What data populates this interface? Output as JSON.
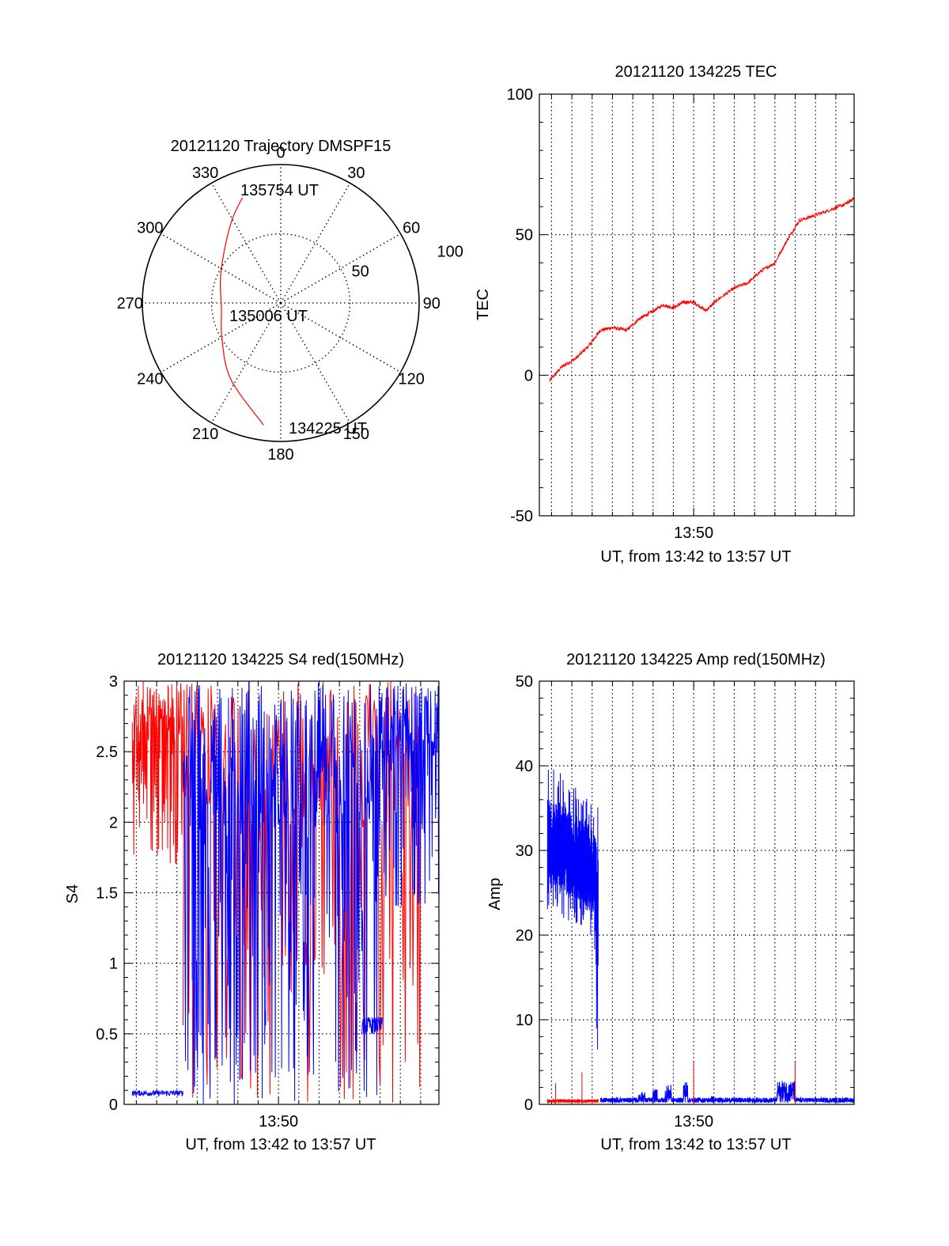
{
  "colors": {
    "red": "#ff0000",
    "blue": "#0000ff",
    "axis": "#000000",
    "grid": "#000000"
  },
  "chart_data": [
    {
      "id": "trajectory",
      "type": "polar",
      "title": "20121120 Trajectory DMSPF15",
      "angle_labels": [
        "0",
        "30",
        "60",
        "90",
        "120",
        "150",
        "180",
        "210",
        "240",
        "270",
        "300",
        "330"
      ],
      "angles_deg": [
        0,
        30,
        60,
        90,
        120,
        150,
        180,
        210,
        240,
        270,
        300,
        330
      ],
      "radial_range": [
        0,
        100
      ],
      "radial_rings": [
        50
      ],
      "radial_labels": [
        "50",
        "100"
      ],
      "track": {
        "color": "red",
        "points": [
          {
            "az": 340,
            "r": 81
          },
          {
            "az": 330,
            "r": 70
          },
          {
            "az": 315,
            "r": 57
          },
          {
            "az": 292,
            "r": 47
          },
          {
            "az": 265,
            "r": 43
          },
          {
            "az": 238,
            "r": 50
          },
          {
            "az": 213,
            "r": 66
          },
          {
            "az": 188,
            "r": 89
          }
        ]
      },
      "annotations": [
        "135754 UT",
        "135006 UT",
        "134225 UT"
      ]
    },
    {
      "id": "tec",
      "type": "line",
      "title": "20121120 134225 TEC",
      "xlabel": "UT, from 13:42 to 13:57 UT",
      "ylabel": "TEC",
      "x_tick_labels": [
        "13:50"
      ],
      "x_range_min": [
        42.4,
        57.9
      ],
      "y_range": [
        -50,
        100
      ],
      "y_ticks": [
        -50,
        0,
        50,
        100
      ],
      "series": [
        {
          "color": "red",
          "x_min": [
            42.9,
            43.5,
            44.2,
            44.9,
            45.4,
            46.0,
            46.7,
            47.3,
            47.8,
            48.5,
            49.0,
            49.5,
            50.0,
            50.6,
            51.2,
            52.0,
            52.7,
            53.3,
            54.0,
            54.6,
            55.2,
            56.0,
            56.8,
            57.5,
            57.9
          ],
          "values": [
            -2,
            3,
            6,
            11,
            16,
            17,
            16,
            20,
            22,
            25,
            24,
            26,
            26,
            23,
            27,
            31,
            33,
            37,
            40,
            48,
            55,
            57,
            59,
            61,
            63
          ]
        }
      ]
    },
    {
      "id": "s4",
      "type": "line",
      "title": "20121120 134225 S4 red(150MHz)",
      "xlabel": "UT, from 13:42 to 13:57 UT",
      "ylabel": "S4",
      "x_tick_labels": [
        "13:50"
      ],
      "x_range_min": [
        42.4,
        57.9
      ],
      "y_range": [
        0,
        3
      ],
      "y_ticks": [
        0,
        0.5,
        1,
        1.5,
        2,
        2.5,
        3
      ],
      "y_tick_labels": [
        "0",
        "0.5",
        "1",
        "1.5",
        "2",
        "2.5",
        "3"
      ],
      "series": [
        {
          "color": "red",
          "segments": [
            {
              "x0": 42.8,
              "x1": 45.3,
              "min": 1.7,
              "max": 3.0,
              "density": 0.9
            },
            {
              "x0": 45.3,
              "x1": 57.0,
              "min": 0.0,
              "max": 3.0,
              "density": 0.35
            }
          ]
        },
        {
          "color": "blue",
          "segments": [
            {
              "x0": 42.8,
              "x1": 45.3,
              "min": 0.06,
              "max": 0.1,
              "density": 1.0
            },
            {
              "x0": 45.3,
              "x1": 55.1,
              "min": 0.0,
              "max": 3.0,
              "density": 0.7
            },
            {
              "x0": 54.1,
              "x1": 55.1,
              "min": 0.5,
              "max": 0.62,
              "density": 1.0
            },
            {
              "x0": 55.1,
              "x1": 57.9,
              "min": 1.4,
              "max": 3.0,
              "density": 0.9
            }
          ]
        }
      ]
    },
    {
      "id": "amp",
      "type": "line",
      "title": "20121120 134225 Amp red(150MHz)",
      "xlabel": "UT, from 13:42 to 13:57 UT",
      "ylabel": "Amp",
      "x_tick_labels": [
        "13:50"
      ],
      "x_range_min": [
        42.4,
        57.9
      ],
      "y_range": [
        0,
        50
      ],
      "y_ticks": [
        0,
        10,
        20,
        30,
        40,
        50
      ],
      "series": [
        {
          "color": "red",
          "baseline": [
            0.2,
            0.6
          ],
          "x_range_min": [
            42.8,
            45.3
          ],
          "spikes": [
            {
              "x_min": 43.2,
              "value": 2.5
            },
            {
              "x_min": 44.5,
              "value": 3.8
            },
            {
              "x_min": 50.0,
              "value": 5.0
            },
            {
              "x_min": 55.0,
              "value": 5.0
            }
          ]
        },
        {
          "color": "blue",
          "envelope": [
            {
              "x_min": 42.8,
              "min": 22,
              "max": 40
            },
            {
              "x_min": 43.6,
              "min": 21,
              "max": 39
            },
            {
              "x_min": 44.4,
              "min": 21,
              "max": 37
            },
            {
              "x_min": 45.1,
              "min": 19,
              "max": 36
            },
            {
              "x_min": 45.3,
              "min": 0.5,
              "max": 37
            }
          ],
          "baseline": [
            0.2,
            0.8
          ],
          "x_range_min": [
            45.4,
            57.9
          ],
          "bursts": [
            {
              "x0": 47.3,
              "x1": 47.6,
              "max": 1.5
            },
            {
              "x0": 48.0,
              "x1": 48.2,
              "max": 1.8
            },
            {
              "x0": 48.6,
              "x1": 48.9,
              "max": 2.3
            },
            {
              "x0": 49.5,
              "x1": 49.7,
              "max": 2.8
            },
            {
              "x0": 50.8,
              "x1": 51.0,
              "max": 1.0
            },
            {
              "x0": 54.1,
              "x1": 55.0,
              "max": 2.8
            }
          ]
        }
      ]
    }
  ]
}
